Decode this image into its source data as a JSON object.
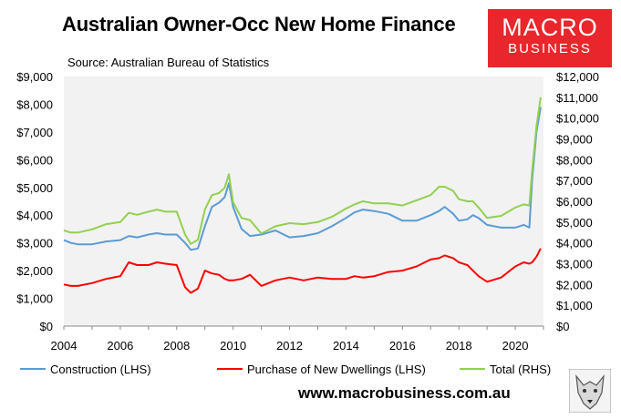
{
  "header": {
    "title": "Australian Owner-Occ New Home Finance",
    "source": "Source: Australian Bureau of Statistics"
  },
  "logo": {
    "line1": "MACRO",
    "line2": "BUSINESS",
    "color": "#e8262c"
  },
  "footer": {
    "url": "www.macrobusiness.com.au"
  },
  "colors": {
    "construction": "#5b9bd5",
    "purchase": "#ff0000",
    "total": "#92d050",
    "plot_bg": "#f2f2f2"
  },
  "chart_data": {
    "type": "line",
    "title": "Australian Owner-Occ New Home Finance",
    "x_axis": {
      "range": [
        2004,
        2021
      ],
      "ticks": [
        "2004",
        "2006",
        "2008",
        "2010",
        "2012",
        "2014",
        "2016",
        "2018",
        "2020"
      ]
    },
    "y_left": {
      "range": [
        0,
        9000
      ],
      "ticks": [
        "$0",
        "$1,000",
        "$2,000",
        "$3,000",
        "$4,000",
        "$5,000",
        "$6,000",
        "$7,000",
        "$8,000",
        "$9,000"
      ]
    },
    "y_right": {
      "range": [
        0,
        12000
      ],
      "ticks": [
        "$0",
        "$1,000",
        "$2,000",
        "$3,000",
        "$4,000",
        "$5,000",
        "$6,000",
        "$7,000",
        "$8,000",
        "$9,000",
        "$10,000",
        "$11,000",
        "$12,000"
      ]
    },
    "legend_position": "bottom",
    "grid": false,
    "series": [
      {
        "name": "Construction (LHS)",
        "axis": "left",
        "x": [
          2004.0,
          2004.25,
          2004.5,
          2005.0,
          2005.5,
          2006.0,
          2006.3,
          2006.6,
          2007.0,
          2007.3,
          2007.6,
          2008.0,
          2008.3,
          2008.5,
          2008.75,
          2009.0,
          2009.25,
          2009.5,
          2009.7,
          2009.85,
          2010.0,
          2010.3,
          2010.6,
          2011.0,
          2011.5,
          2012.0,
          2012.5,
          2013.0,
          2013.5,
          2014.0,
          2014.3,
          2014.6,
          2015.0,
          2015.5,
          2016.0,
          2016.5,
          2017.0,
          2017.3,
          2017.5,
          2017.8,
          2018.0,
          2018.3,
          2018.5,
          2018.7,
          2019.0,
          2019.5,
          2020.0,
          2020.3,
          2020.5,
          2020.6,
          2020.75,
          2020.9
        ],
        "values": [
          3100,
          3000,
          2950,
          2950,
          3050,
          3100,
          3250,
          3200,
          3300,
          3350,
          3300,
          3300,
          3000,
          2750,
          2800,
          3600,
          4300,
          4450,
          4650,
          5150,
          4300,
          3500,
          3250,
          3300,
          3450,
          3200,
          3250,
          3350,
          3600,
          3900,
          4100,
          4200,
          4150,
          4050,
          3800,
          3800,
          4000,
          4150,
          4300,
          4050,
          3800,
          3850,
          4000,
          3900,
          3650,
          3550,
          3550,
          3650,
          3550,
          5300,
          7000,
          7900
        ]
      },
      {
        "name": "Purchase of New Dwellings (LHS)",
        "axis": "left",
        "x": [
          2004.0,
          2004.25,
          2004.5,
          2005.0,
          2005.5,
          2006.0,
          2006.3,
          2006.6,
          2007.0,
          2007.3,
          2007.6,
          2008.0,
          2008.3,
          2008.5,
          2008.75,
          2009.0,
          2009.25,
          2009.5,
          2009.7,
          2009.85,
          2010.0,
          2010.3,
          2010.6,
          2011.0,
          2011.5,
          2012.0,
          2012.5,
          2013.0,
          2013.5,
          2014.0,
          2014.3,
          2014.6,
          2015.0,
          2015.5,
          2016.0,
          2016.5,
          2017.0,
          2017.3,
          2017.5,
          2017.8,
          2018.0,
          2018.3,
          2018.5,
          2018.7,
          2019.0,
          2019.5,
          2020.0,
          2020.3,
          2020.5,
          2020.6,
          2020.75,
          2020.9
        ],
        "values": [
          1500,
          1450,
          1450,
          1550,
          1700,
          1800,
          2300,
          2200,
          2200,
          2300,
          2250,
          2200,
          1400,
          1200,
          1350,
          2000,
          1900,
          1850,
          1700,
          1650,
          1650,
          1700,
          1850,
          1450,
          1650,
          1750,
          1650,
          1750,
          1700,
          1700,
          1800,
          1750,
          1800,
          1950,
          2000,
          2150,
          2400,
          2450,
          2550,
          2450,
          2300,
          2200,
          2000,
          1800,
          1600,
          1750,
          2150,
          2300,
          2250,
          2300,
          2500,
          2800
        ]
      },
      {
        "name": "Total (RHS)",
        "axis": "right",
        "x": [
          2004.0,
          2004.25,
          2004.5,
          2005.0,
          2005.5,
          2006.0,
          2006.3,
          2006.6,
          2007.0,
          2007.3,
          2007.6,
          2008.0,
          2008.3,
          2008.5,
          2008.75,
          2009.0,
          2009.25,
          2009.5,
          2009.7,
          2009.85,
          2010.0,
          2010.3,
          2010.6,
          2011.0,
          2011.5,
          2012.0,
          2012.5,
          2013.0,
          2013.5,
          2014.0,
          2014.3,
          2014.6,
          2015.0,
          2015.5,
          2016.0,
          2016.5,
          2017.0,
          2017.3,
          2017.5,
          2017.8,
          2018.0,
          2018.3,
          2018.5,
          2018.7,
          2019.0,
          2019.5,
          2020.0,
          2020.3,
          2020.5,
          2020.6,
          2020.75,
          2020.9
        ],
        "values": [
          4600,
          4500,
          4500,
          4650,
          4900,
          5000,
          5450,
          5350,
          5500,
          5600,
          5500,
          5500,
          4400,
          3950,
          4150,
          5600,
          6300,
          6400,
          6650,
          7300,
          5950,
          5200,
          5100,
          4450,
          4800,
          4950,
          4900,
          5000,
          5250,
          5650,
          5850,
          6000,
          5900,
          5900,
          5800,
          6050,
          6300,
          6700,
          6700,
          6500,
          6100,
          6000,
          6000,
          5700,
          5200,
          5300,
          5700,
          5850,
          5800,
          7500,
          9600,
          11000
        ]
      }
    ]
  }
}
